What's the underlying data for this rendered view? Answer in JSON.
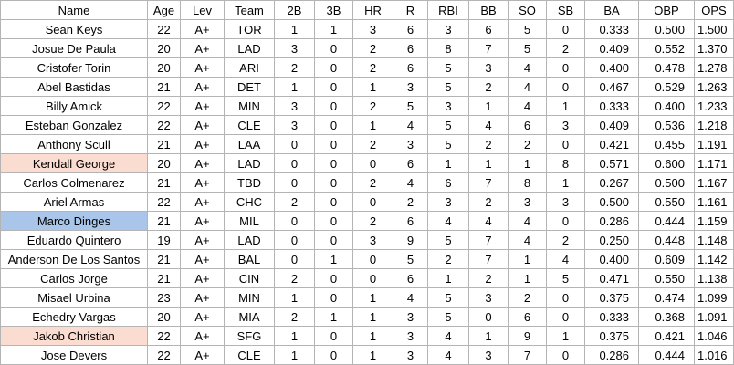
{
  "table": {
    "columns": [
      "Name",
      "Age",
      "Lev",
      "Team",
      "2B",
      "3B",
      "HR",
      "R",
      "RBI",
      "BB",
      "SO",
      "SB",
      "BA",
      "OBP",
      "OPS"
    ],
    "rows": [
      [
        "Sean Keys",
        "22",
        "A+",
        "TOR",
        "1",
        "1",
        "3",
        "6",
        "3",
        "6",
        "5",
        "0",
        "0.333",
        "0.500",
        "1.500"
      ],
      [
        "Josue De Paula",
        "20",
        "A+",
        "LAD",
        "3",
        "0",
        "2",
        "6",
        "8",
        "7",
        "5",
        "2",
        "0.409",
        "0.552",
        "1.370"
      ],
      [
        "Cristofer Torin",
        "20",
        "A+",
        "ARI",
        "2",
        "0",
        "2",
        "6",
        "5",
        "3",
        "4",
        "0",
        "0.400",
        "0.478",
        "1.278"
      ],
      [
        "Abel Bastidas",
        "21",
        "A+",
        "DET",
        "1",
        "0",
        "1",
        "3",
        "5",
        "2",
        "4",
        "0",
        "0.467",
        "0.529",
        "1.263"
      ],
      [
        "Billy Amick",
        "22",
        "A+",
        "MIN",
        "3",
        "0",
        "2",
        "5",
        "3",
        "1",
        "4",
        "1",
        "0.333",
        "0.400",
        "1.233"
      ],
      [
        "Esteban Gonzalez",
        "22",
        "A+",
        "CLE",
        "3",
        "0",
        "1",
        "4",
        "5",
        "4",
        "6",
        "3",
        "0.409",
        "0.536",
        "1.218"
      ],
      [
        "Anthony Scull",
        "21",
        "A+",
        "LAA",
        "0",
        "0",
        "2",
        "3",
        "5",
        "2",
        "2",
        "0",
        "0.421",
        "0.455",
        "1.191"
      ],
      [
        "Kendall George",
        "20",
        "A+",
        "LAD",
        "0",
        "0",
        "0",
        "6",
        "1",
        "1",
        "1",
        "8",
        "0.571",
        "0.600",
        "1.171"
      ],
      [
        "Carlos Colmenarez",
        "21",
        "A+",
        "TBD",
        "0",
        "0",
        "2",
        "4",
        "6",
        "7",
        "8",
        "1",
        "0.267",
        "0.500",
        "1.167"
      ],
      [
        "Ariel Armas",
        "22",
        "A+",
        "CHC",
        "2",
        "0",
        "0",
        "2",
        "3",
        "2",
        "3",
        "3",
        "0.500",
        "0.550",
        "1.161"
      ],
      [
        "Marco Dinges",
        "21",
        "A+",
        "MIL",
        "0",
        "0",
        "2",
        "6",
        "4",
        "4",
        "4",
        "0",
        "0.286",
        "0.444",
        "1.159"
      ],
      [
        "Eduardo Quintero",
        "19",
        "A+",
        "LAD",
        "0",
        "0",
        "3",
        "9",
        "5",
        "7",
        "4",
        "2",
        "0.250",
        "0.448",
        "1.148"
      ],
      [
        "Anderson De Los Santos",
        "21",
        "A+",
        "BAL",
        "0",
        "1",
        "0",
        "5",
        "2",
        "7",
        "1",
        "4",
        "0.400",
        "0.609",
        "1.142"
      ],
      [
        "Carlos Jorge",
        "21",
        "A+",
        "CIN",
        "2",
        "0",
        "0",
        "6",
        "1",
        "2",
        "1",
        "5",
        "0.471",
        "0.550",
        "1.138"
      ],
      [
        "Misael Urbina",
        "23",
        "A+",
        "MIN",
        "1",
        "0",
        "1",
        "4",
        "5",
        "3",
        "2",
        "0",
        "0.375",
        "0.474",
        "1.099"
      ],
      [
        "Echedry Vargas",
        "20",
        "A+",
        "MIA",
        "2",
        "1",
        "1",
        "3",
        "5",
        "0",
        "6",
        "0",
        "0.333",
        "0.368",
        "1.091"
      ],
      [
        "Jakob Christian",
        "22",
        "A+",
        "SFG",
        "1",
        "0",
        "1",
        "3",
        "4",
        "1",
        "9",
        "1",
        "0.375",
        "0.421",
        "1.046"
      ],
      [
        "Jose Devers",
        "22",
        "A+",
        "CLE",
        "1",
        "0",
        "1",
        "3",
        "4",
        "3",
        "7",
        "0",
        "0.286",
        "0.444",
        "1.016"
      ]
    ],
    "name_fills": [
      null,
      null,
      null,
      null,
      null,
      null,
      null,
      "#fbdcd0",
      null,
      null,
      "#a9c6ea",
      null,
      null,
      null,
      null,
      null,
      "#fbdcd0",
      null
    ]
  }
}
